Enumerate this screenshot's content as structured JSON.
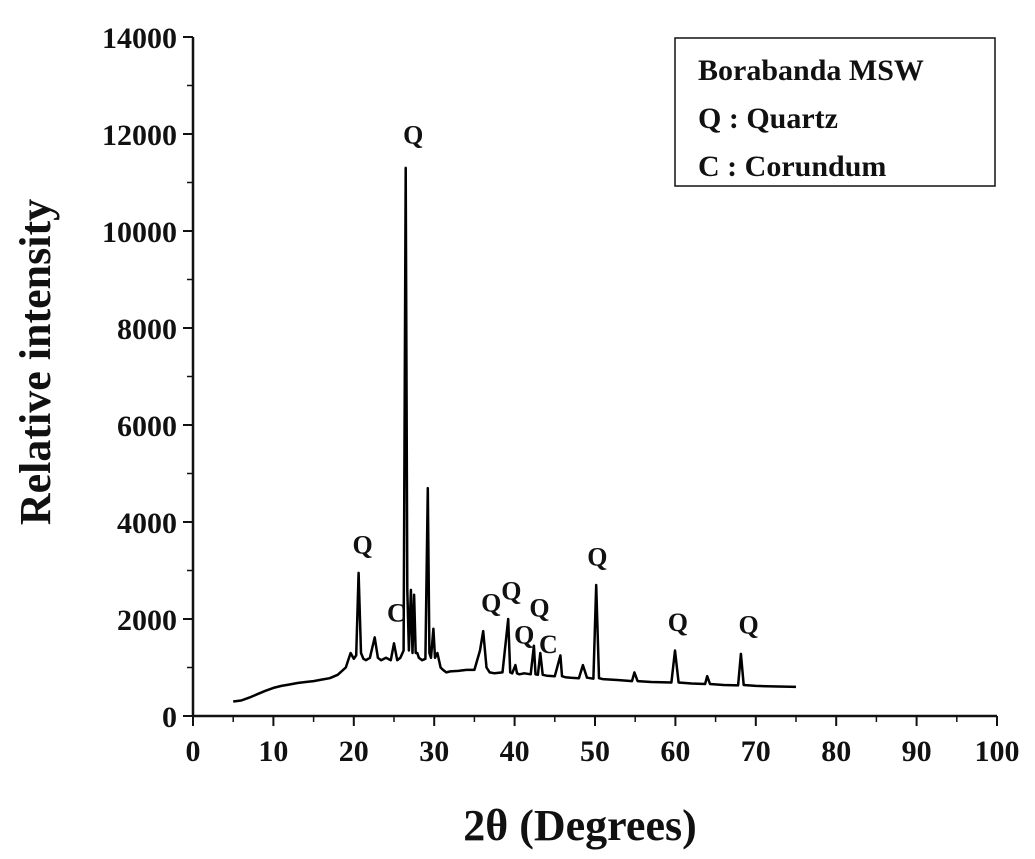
{
  "chart_data": {
    "type": "line",
    "xlabel": "2θ (Degrees)",
    "ylabel": "Relative intensity",
    "xlim": [
      0,
      100
    ],
    "ylim": [
      0,
      14000
    ],
    "x_ticks": [
      "0",
      "10",
      "20",
      "30",
      "40",
      "50",
      "60",
      "70",
      "80",
      "90",
      "100"
    ],
    "y_ticks": [
      "0",
      "2000",
      "4000",
      "6000",
      "8000",
      "10000",
      "12000",
      "14000"
    ],
    "grid": false,
    "legend_position": "top-right",
    "legend_lines": [
      "Borabanda MSW",
      "Q : Quartz",
      "C : Corundum"
    ],
    "series": [
      {
        "color": "#000000",
        "x": [
          5,
          6,
          7,
          8,
          9,
          10,
          11,
          12,
          13,
          14,
          15,
          16,
          17,
          18,
          19,
          19.6,
          20,
          20.3,
          20.6,
          20.9,
          21.2,
          21.5,
          22,
          22.6,
          23,
          23.4,
          24,
          24.6,
          25,
          25.4,
          25.8,
          26.2,
          26.45,
          26.65,
          26.85,
          27.1,
          27.3,
          27.5,
          27.7,
          27.9,
          28.1,
          28.5,
          28.9,
          29.2,
          29.4,
          29.6,
          29.9,
          30.1,
          30.4,
          30.8,
          31.1,
          31.5,
          32,
          33,
          34,
          35,
          35.7,
          36.1,
          36.5,
          36.9,
          37.5,
          38.5,
          39.2,
          39.45,
          39.7,
          40.1,
          40.3,
          40.6,
          41.2,
          42,
          42.4,
          42.6,
          42.9,
          43.2,
          43.5,
          44,
          45,
          45.7,
          45.9,
          46.3,
          47,
          48,
          48.5,
          49,
          49.8,
          50.15,
          50.5,
          51,
          53,
          54.6,
          54.9,
          55.3,
          57,
          59.5,
          59.95,
          60.4,
          62,
          63.7,
          63.95,
          64.3,
          66,
          67.8,
          68.15,
          68.5,
          70,
          72,
          75
        ],
        "y": [
          300,
          320,
          380,
          450,
          520,
          580,
          620,
          650,
          680,
          700,
          720,
          750,
          780,
          850,
          1000,
          1300,
          1180,
          1250,
          2950,
          1300,
          1180,
          1150,
          1200,
          1620,
          1200,
          1150,
          1200,
          1150,
          1500,
          1150,
          1200,
          1350,
          11300,
          2600,
          1350,
          2600,
          1300,
          2500,
          1300,
          1300,
          1200,
          1150,
          1180,
          4700,
          1300,
          1200,
          1800,
          1200,
          1300,
          1000,
          950,
          900,
          920,
          930,
          950,
          950,
          1350,
          1750,
          1000,
          900,
          880,
          900,
          2000,
          900,
          880,
          1050,
          880,
          860,
          880,
          860,
          1450,
          860,
          850,
          1300,
          850,
          830,
          820,
          1250,
          820,
          800,
          790,
          780,
          1050,
          790,
          770,
          2700,
          780,
          760,
          740,
          720,
          900,
          720,
          700,
          690,
          1350,
          690,
          670,
          660,
          820,
          660,
          640,
          630,
          1280,
          640,
          620,
          610,
          600
        ]
      }
    ],
    "peak_labels": [
      {
        "text": "Q",
        "x": 21.1,
        "y": 3350
      },
      {
        "text": "C",
        "x": 25.3,
        "y": 1950
      },
      {
        "text": "Q",
        "x": 27.4,
        "y": 11800
      },
      {
        "text": "Q",
        "x": 37.1,
        "y": 2150
      },
      {
        "text": "Q",
        "x": 39.6,
        "y": 2400
      },
      {
        "text": "Q",
        "x": 41.2,
        "y": 1500
      },
      {
        "text": "Q",
        "x": 43.1,
        "y": 2050
      },
      {
        "text": "C",
        "x": 44.2,
        "y": 1300
      },
      {
        "text": "Q",
        "x": 50.3,
        "y": 3100
      },
      {
        "text": "Q",
        "x": 60.3,
        "y": 1750
      },
      {
        "text": "Q",
        "x": 69.1,
        "y": 1700
      }
    ]
  }
}
